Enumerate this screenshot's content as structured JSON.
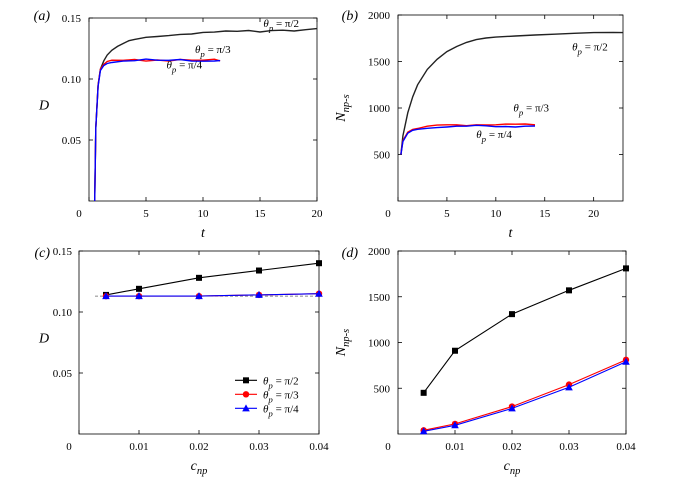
{
  "chart_data": [
    {
      "id": "a",
      "panel_label": "(a)",
      "type": "line",
      "xlabel": "t",
      "ylabel": "D",
      "xlim": [
        0,
        20
      ],
      "ylim": [
        0,
        0.15
      ],
      "xticks": [
        0,
        5,
        10,
        15,
        20
      ],
      "xtick_labels": [
        "0",
        "5",
        "10",
        "15",
        "20"
      ],
      "yticks": [
        0.05,
        0.1,
        0.15
      ],
      "ytick_labels": [
        "0.05",
        "0.10",
        "0.15"
      ],
      "series": [
        {
          "name": "θp = π/2",
          "color": "#222222",
          "x": [
            0.5,
            0.6,
            0.8,
            1.0,
            1.3,
            1.6,
            2.0,
            2.5,
            3,
            3.5,
            4,
            5,
            6,
            7,
            8,
            9,
            10,
            11,
            12,
            13,
            14,
            15,
            16,
            17,
            18,
            19,
            20
          ],
          "y": [
            0.0,
            0.06,
            0.095,
            0.108,
            0.115,
            0.12,
            0.124,
            0.127,
            0.129,
            0.131,
            0.132,
            0.134,
            0.135,
            0.136,
            0.137,
            0.137,
            0.138,
            0.138,
            0.139,
            0.139,
            0.14,
            0.139,
            0.14,
            0.14,
            0.139,
            0.14,
            0.141
          ]
        },
        {
          "name": "θp = π/3",
          "color": "#ff0000",
          "x": [
            0.5,
            0.6,
            0.8,
            1.0,
            1.3,
            1.6,
            2.0,
            3,
            4,
            5,
            6,
            7,
            8,
            9,
            10,
            11,
            11.5
          ],
          "y": [
            0.0,
            0.06,
            0.095,
            0.108,
            0.112,
            0.114,
            0.115,
            0.115,
            0.116,
            0.115,
            0.116,
            0.115,
            0.116,
            0.115,
            0.115,
            0.116,
            0.115
          ]
        },
        {
          "name": "θp = π/4",
          "color": "#0000ff",
          "x": [
            0.5,
            0.6,
            0.8,
            1.0,
            1.3,
            1.6,
            2.0,
            3,
            4,
            5,
            6,
            7,
            8,
            9,
            10,
            11,
            11.5
          ],
          "y": [
            0.0,
            0.06,
            0.094,
            0.107,
            0.111,
            0.113,
            0.114,
            0.115,
            0.115,
            0.116,
            0.115,
            0.115,
            0.116,
            0.115,
            0.115,
            0.115,
            0.115
          ]
        }
      ],
      "annotations": [
        {
          "text": "θp = π/2",
          "series": 0,
          "at": [
            15.3,
            0.1425
          ]
        },
        {
          "text": "θp = π/3",
          "series": 1,
          "at": [
            9.3,
            0.1215
          ]
        },
        {
          "text": "θp = π/4",
          "series": 2,
          "at": [
            6.8,
            0.1085
          ]
        }
      ]
    },
    {
      "id": "b",
      "panel_label": "(b)",
      "type": "line",
      "xlabel": "t",
      "ylabel": "Nnp-s",
      "xlim": [
        0,
        23
      ],
      "ylim": [
        0,
        2000
      ],
      "xticks": [
        0,
        5,
        10,
        15,
        20
      ],
      "xtick_labels": [
        "0",
        "5",
        "10",
        "15",
        "20"
      ],
      "yticks": [
        500,
        1000,
        1500,
        2000
      ],
      "ytick_labels": [
        "500",
        "1000",
        "1500",
        "2000"
      ],
      "series": [
        {
          "name": "θp = π/2",
          "color": "#222222",
          "x": [
            0.3,
            0.5,
            1,
            1.5,
            2,
            3,
            4,
            5,
            6,
            7,
            8,
            9,
            10,
            12,
            14,
            16,
            18,
            20,
            22,
            23
          ],
          "y": [
            500,
            700,
            950,
            1120,
            1250,
            1420,
            1530,
            1610,
            1660,
            1700,
            1730,
            1750,
            1765,
            1780,
            1790,
            1795,
            1800,
            1805,
            1808,
            1810
          ]
        },
        {
          "name": "θp = π/3",
          "color": "#ff0000",
          "x": [
            0.3,
            0.5,
            1,
            1.5,
            2,
            3,
            4,
            5,
            6,
            7,
            8,
            9,
            10,
            11,
            12,
            13,
            14
          ],
          "y": [
            500,
            650,
            740,
            770,
            780,
            800,
            810,
            815,
            820,
            815,
            825,
            820,
            818,
            822,
            820,
            825,
            822
          ]
        },
        {
          "name": "θp = π/4",
          "color": "#0000ff",
          "x": [
            0.3,
            0.5,
            1,
            1.5,
            2,
            3,
            4,
            5,
            6,
            7,
            8,
            9,
            10,
            11,
            12,
            13,
            14
          ],
          "y": [
            500,
            640,
            730,
            760,
            770,
            785,
            795,
            800,
            805,
            800,
            808,
            805,
            800,
            806,
            802,
            808,
            805
          ]
        }
      ],
      "annotations": [
        {
          "text": "θp = π/2",
          "series": 0,
          "at": [
            17.8,
            1620
          ]
        },
        {
          "text": "θp = π/3",
          "series": 1,
          "at": [
            11.8,
            960
          ]
        },
        {
          "text": "θp = π/4",
          "series": 2,
          "at": [
            8.0,
            680
          ]
        }
      ]
    },
    {
      "id": "c",
      "panel_label": "(c)",
      "type": "line",
      "xlabel": "cnp",
      "ylabel": "D",
      "xlim": [
        0,
        0.04
      ],
      "ylim": [
        0,
        0.15
      ],
      "xticks": [
        0,
        0.01,
        0.02,
        0.03,
        0.04
      ],
      "xtick_labels": [
        "0",
        "0.01",
        "0.02",
        "0.03",
        "0.04"
      ],
      "yticks": [
        0.05,
        0.1,
        0.15
      ],
      "ytick_labels": [
        "0.05",
        "0.10",
        "0.15"
      ],
      "reference_line": {
        "y": 0.113,
        "style": "dashed"
      },
      "legend": {
        "position": "lower-right",
        "entries": [
          "θp = π/2",
          "θp = π/3",
          "θp = π/4"
        ]
      },
      "series": [
        {
          "name": "θp = π/2",
          "color": "#000000",
          "marker": "square",
          "x": [
            0.0045,
            0.01,
            0.02,
            0.03,
            0.04
          ],
          "y": [
            0.114,
            0.119,
            0.128,
            0.134,
            0.14
          ]
        },
        {
          "name": "θp = π/3",
          "color": "#ff0000",
          "marker": "circle",
          "x": [
            0.0045,
            0.01,
            0.02,
            0.03,
            0.04
          ],
          "y": [
            0.113,
            0.113,
            0.113,
            0.114,
            0.115
          ]
        },
        {
          "name": "θp = π/4",
          "color": "#0000ff",
          "marker": "triangle",
          "x": [
            0.0045,
            0.01,
            0.02,
            0.03,
            0.04
          ],
          "y": [
            0.113,
            0.113,
            0.113,
            0.114,
            0.115
          ]
        }
      ]
    },
    {
      "id": "d",
      "panel_label": "(d)",
      "type": "line",
      "xlabel": "cnp",
      "ylabel": "Nnp-s",
      "xlim": [
        0,
        0.04
      ],
      "ylim": [
        0,
        2000
      ],
      "xticks": [
        0,
        0.01,
        0.02,
        0.03,
        0.04
      ],
      "xtick_labels": [
        "0",
        "0.01",
        "0.02",
        "0.03",
        "0.04"
      ],
      "yticks": [
        500,
        1000,
        1500,
        2000
      ],
      "ytick_labels": [
        "500",
        "1000",
        "1500",
        "2000"
      ],
      "series": [
        {
          "name": "θp = π/2",
          "color": "#000000",
          "marker": "square",
          "x": [
            0.0045,
            0.01,
            0.02,
            0.03,
            0.04
          ],
          "y": [
            450,
            910,
            1310,
            1570,
            1810
          ]
        },
        {
          "name": "θp = π/3",
          "color": "#ff0000",
          "marker": "circle",
          "x": [
            0.0045,
            0.01,
            0.02,
            0.03,
            0.04
          ],
          "y": [
            40,
            110,
            300,
            540,
            810
          ]
        },
        {
          "name": "θp = π/4",
          "color": "#0000ff",
          "marker": "triangle",
          "x": [
            0.0045,
            0.01,
            0.02,
            0.03,
            0.04
          ],
          "y": [
            30,
            95,
            280,
            510,
            790
          ]
        }
      ]
    }
  ]
}
